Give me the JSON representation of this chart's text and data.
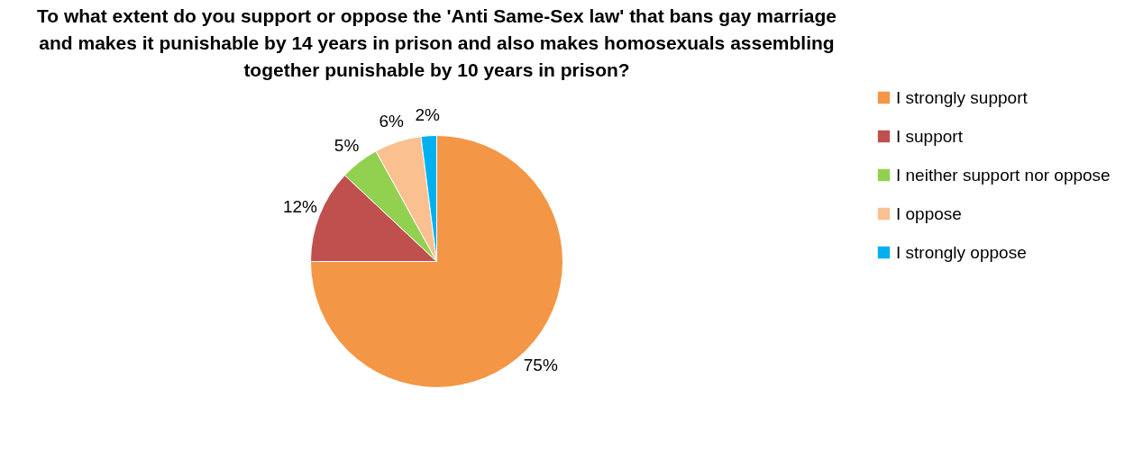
{
  "chart_data": {
    "type": "pie",
    "title": "To what extent do you support or oppose the 'Anti Same-Sex law' that bans gay marriage\nand makes it punishable by 14 years in prison and also makes homosexuals assembling\ntogether punishable by 10 years in prison?",
    "categories": [
      "I strongly support",
      "I support",
      "I neither support nor oppose",
      "I oppose",
      "I strongly oppose"
    ],
    "values": [
      75,
      12,
      5,
      6,
      2
    ],
    "colors": [
      "#f39645",
      "#c0504d",
      "#92d050",
      "#fac090",
      "#00b0f0"
    ],
    "value_labels": [
      "75%",
      "12%",
      "5%",
      "6%",
      "2%"
    ],
    "legend": "right"
  }
}
